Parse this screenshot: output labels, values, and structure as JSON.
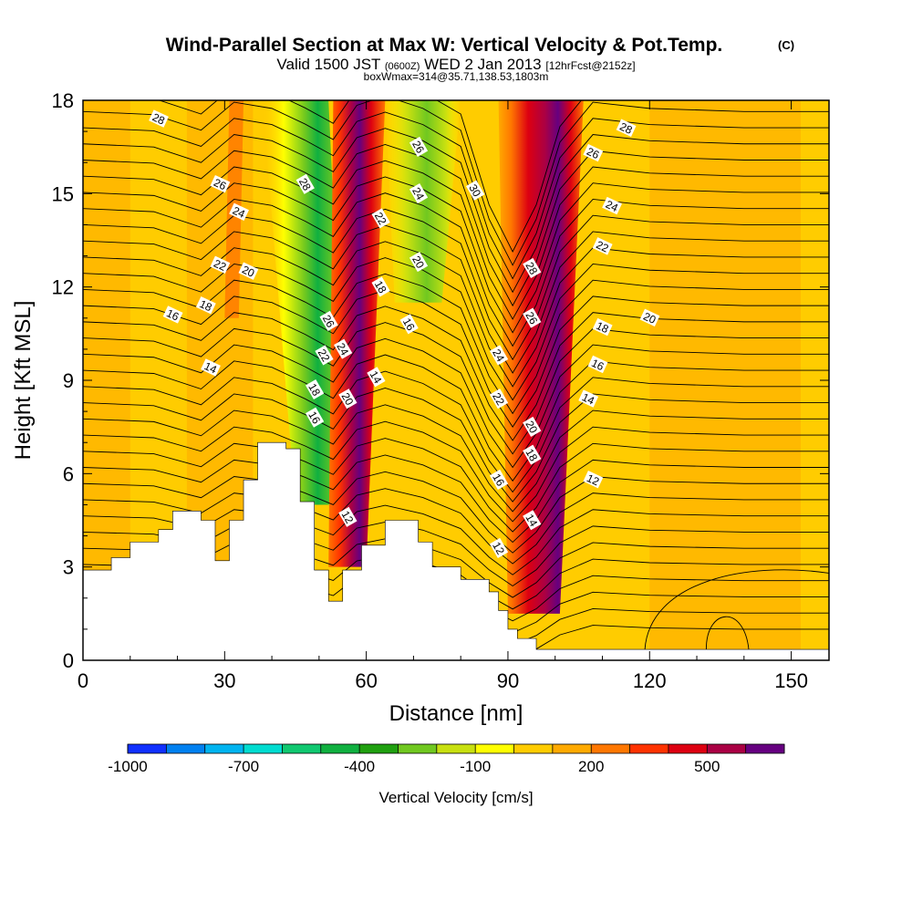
{
  "chart_data": {
    "type": "contour",
    "title": "Wind-Parallel Section at Max W: Vertical Velocity & Pot.Temp.",
    "title_mark": "(C)",
    "subtitle": {
      "pre": "Valid 1500 JST ",
      "utc": "(0600Z)",
      "mid": " WED 2 Jan 2013 ",
      "fcst": "[12hrFcst@2152z]"
    },
    "subtitle2": "boxWmax=314@35.71,138.53,1803m",
    "xlabel": "Distance [nm]",
    "ylabel": "Height [Kft MSL]",
    "xlim": [
      0,
      158
    ],
    "ylim": [
      0,
      18
    ],
    "x_ticks": [
      "0",
      "30",
      "60",
      "90",
      "120",
      "150"
    ],
    "y_ticks": [
      "0",
      "3",
      "6",
      "9",
      "12",
      "15",
      "18"
    ],
    "colorbar": {
      "label": "Vertical Velocity [cm/s]",
      "tick_labels": [
        "-1000",
        "-700",
        "-400",
        "-100",
        "200",
        "500"
      ],
      "colors": [
        "#1030ff",
        "#0080f0",
        "#00b4f0",
        "#00dcd0",
        "#10c870",
        "#10b040",
        "#20a010",
        "#70c820",
        "#c8e010",
        "#ffff00",
        "#ffcc00",
        "#ffaa00",
        "#ff7700",
        "#ff3300",
        "#dd0011",
        "#aa0044",
        "#660080"
      ]
    },
    "background_color": "#ffcc00",
    "velocity_regions": [
      {
        "name": "updraft-left",
        "x": [
          46,
          58
        ],
        "y": [
          3,
          18
        ],
        "value": 400
      },
      {
        "name": "downdraft-left",
        "x": [
          42,
          52
        ],
        "y": [
          5,
          18
        ],
        "value": -400
      },
      {
        "name": "downdraft-mid",
        "x": [
          63,
          78
        ],
        "y": [
          12,
          18
        ],
        "value": -250
      },
      {
        "name": "updraft-right",
        "x": [
          88,
          104
        ],
        "y": [
          2,
          18
        ],
        "value": 500
      }
    ],
    "terrain_top_kft": [
      [
        0,
        2.9
      ],
      [
        6,
        3.3
      ],
      [
        10,
        3.8
      ],
      [
        16,
        4.2
      ],
      [
        19,
        4.8
      ],
      [
        25,
        4.5
      ],
      [
        28,
        3.2
      ],
      [
        31,
        4.5
      ],
      [
        34,
        5.8
      ],
      [
        37,
        7.0
      ],
      [
        43,
        6.8
      ],
      [
        46,
        5.1
      ],
      [
        49,
        2.9
      ],
      [
        52,
        1.9
      ],
      [
        55,
        2.9
      ],
      [
        59,
        3.7
      ],
      [
        64,
        4.5
      ],
      [
        71,
        3.8
      ],
      [
        74,
        3.0
      ],
      [
        80,
        2.6
      ],
      [
        86,
        2.2
      ],
      [
        88,
        1.6
      ],
      [
        90,
        1.0
      ],
      [
        92,
        0.7
      ],
      [
        96,
        0.35
      ],
      [
        110,
        0.35
      ],
      [
        158,
        0.35
      ]
    ],
    "isentrope_labels": [
      {
        "text": "28",
        "x": 16,
        "y": 17.4
      },
      {
        "text": "26",
        "x": 29,
        "y": 15.3
      },
      {
        "text": "24",
        "x": 33,
        "y": 14.4
      },
      {
        "text": "22",
        "x": 29,
        "y": 12.7
      },
      {
        "text": "20",
        "x": 35,
        "y": 12.5
      },
      {
        "text": "18",
        "x": 26,
        "y": 11.4
      },
      {
        "text": "16",
        "x": 19,
        "y": 11.1
      },
      {
        "text": "14",
        "x": 27,
        "y": 9.4
      },
      {
        "text": "28",
        "x": 47,
        "y": 15.3
      },
      {
        "text": "26",
        "x": 52,
        "y": 10.9
      },
      {
        "text": "24",
        "x": 55,
        "y": 10.0
      },
      {
        "text": "22",
        "x": 51,
        "y": 9.8
      },
      {
        "text": "18",
        "x": 49,
        "y": 8.7
      },
      {
        "text": "16",
        "x": 49,
        "y": 7.8
      },
      {
        "text": "20",
        "x": 56,
        "y": 8.4
      },
      {
        "text": "14",
        "x": 62,
        "y": 9.1
      },
      {
        "text": "12",
        "x": 56,
        "y": 4.6
      },
      {
        "text": "22",
        "x": 63,
        "y": 14.2
      },
      {
        "text": "18",
        "x": 63,
        "y": 12.0
      },
      {
        "text": "26",
        "x": 71,
        "y": 16.5
      },
      {
        "text": "24",
        "x": 71,
        "y": 15.0
      },
      {
        "text": "20",
        "x": 71,
        "y": 12.8
      },
      {
        "text": "16",
        "x": 69,
        "y": 10.8
      },
      {
        "text": "30",
        "x": 83,
        "y": 15.1
      },
      {
        "text": "24",
        "x": 88,
        "y": 9.8
      },
      {
        "text": "22",
        "x": 88,
        "y": 8.4
      },
      {
        "text": "16",
        "x": 88,
        "y": 5.8
      },
      {
        "text": "12",
        "x": 88,
        "y": 3.6
      },
      {
        "text": "28",
        "x": 95,
        "y": 12.6
      },
      {
        "text": "26",
        "x": 95,
        "y": 11.0
      },
      {
        "text": "20",
        "x": 95,
        "y": 7.5
      },
      {
        "text": "18",
        "x": 95,
        "y": 6.6
      },
      {
        "text": "14",
        "x": 95,
        "y": 4.5
      },
      {
        "text": "28",
        "x": 115,
        "y": 17.1
      },
      {
        "text": "26",
        "x": 108,
        "y": 16.3
      },
      {
        "text": "24",
        "x": 112,
        "y": 14.6
      },
      {
        "text": "22",
        "x": 110,
        "y": 13.3
      },
      {
        "text": "20",
        "x": 120,
        "y": 11.0
      },
      {
        "text": "18",
        "x": 110,
        "y": 10.7
      },
      {
        "text": "16",
        "x": 109,
        "y": 9.5
      },
      {
        "text": "14",
        "x": 107,
        "y": 8.4
      },
      {
        "text": "12",
        "x": 108,
        "y": 5.8
      }
    ]
  }
}
